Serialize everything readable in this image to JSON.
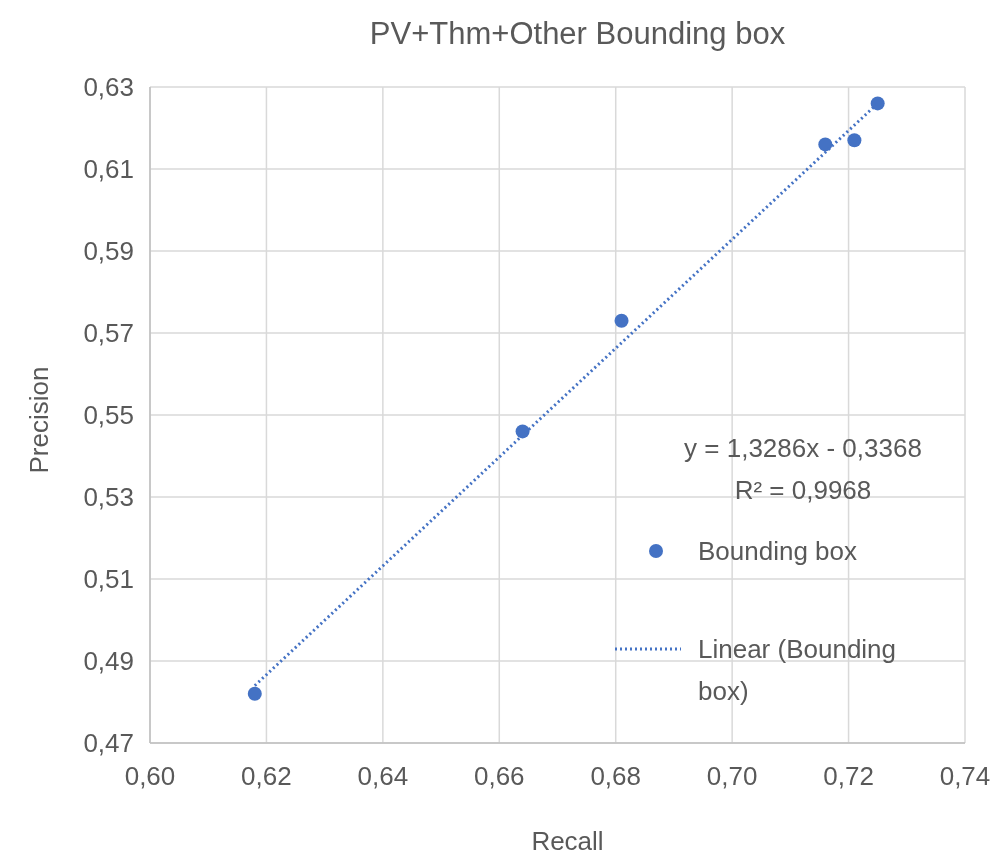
{
  "chart_data": {
    "type": "scatter",
    "title": "PV+Thm+Other Bounding box",
    "xlabel": "Recall",
    "ylabel": "Precision",
    "xlim": [
      0.6,
      0.74
    ],
    "xticks": [
      {
        "value": 0.6,
        "label": "0,60"
      },
      {
        "value": 0.62,
        "label": "0,62"
      },
      {
        "value": 0.64,
        "label": "0,64"
      },
      {
        "value": 0.66,
        "label": "0,66"
      },
      {
        "value": 0.68,
        "label": "0,68"
      },
      {
        "value": 0.7,
        "label": "0,70"
      },
      {
        "value": 0.72,
        "label": "0,72"
      },
      {
        "value": 0.74,
        "label": "0,74"
      }
    ],
    "ylim": [
      0.47,
      0.63
    ],
    "yticks": [
      {
        "value": 0.47,
        "label": "0,47"
      },
      {
        "value": 0.49,
        "label": "0,49"
      },
      {
        "value": 0.51,
        "label": "0,51"
      },
      {
        "value": 0.53,
        "label": "0,53"
      },
      {
        "value": 0.55,
        "label": "0,55"
      },
      {
        "value": 0.57,
        "label": "0,57"
      },
      {
        "value": 0.59,
        "label": "0,59"
      },
      {
        "value": 0.61,
        "label": "0,61"
      },
      {
        "value": 0.63,
        "label": "0,63"
      }
    ],
    "grid": true,
    "legend": "right",
    "series": [
      {
        "name": "Bounding box",
        "marker": "circle",
        "color": "#4472c4",
        "x": [
          0.618,
          0.664,
          0.681,
          0.716,
          0.721,
          0.725
        ],
        "values": [
          0.482,
          0.546,
          0.573,
          0.616,
          0.617,
          0.626
        ]
      },
      {
        "name": "Linear (Bounding box)",
        "type": "line",
        "line_style": "dotted",
        "color": "#4472c4",
        "x": [
          0.618,
          0.725
        ],
        "values": [
          0.484,
          0.626
        ]
      }
    ],
    "annotations": [
      "y = 1,3286x - 0,3368",
      "R² = 0,9968"
    ]
  }
}
